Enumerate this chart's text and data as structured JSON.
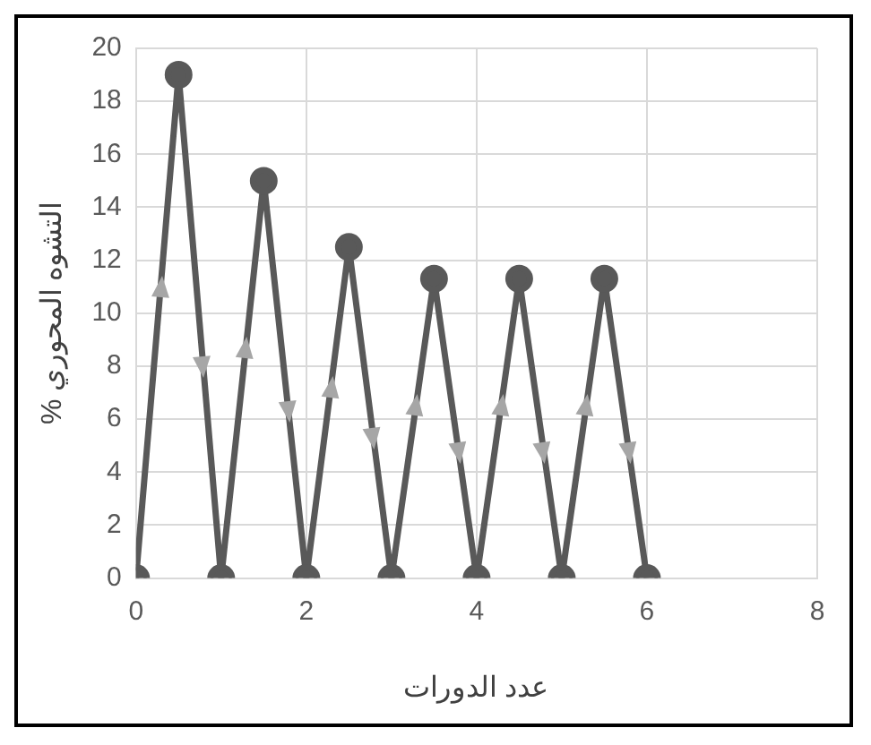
{
  "chart_data": {
    "type": "line",
    "xlabel": "عدد الدورات",
    "ylabel": "% التشوه المحوري",
    "x": [
      0,
      0.5,
      1,
      1.5,
      2,
      2.5,
      3,
      3.5,
      4,
      4.5,
      5,
      5.5,
      6
    ],
    "series": [
      {
        "color": "#595959",
        "values": [
          0,
          19,
          0,
          15,
          0,
          12.5,
          0,
          11.3,
          0,
          11.3,
          0,
          11.3,
          0
        ]
      }
    ],
    "xlim": [
      0,
      8
    ],
    "xticks": [
      0,
      2,
      4,
      6,
      8
    ],
    "ylim": [
      0,
      20
    ],
    "yticks": [
      0,
      2,
      4,
      6,
      8,
      10,
      12,
      14,
      16,
      18,
      20
    ],
    "grid": true,
    "legend": false,
    "marker": "circle",
    "line_style": "solid"
  }
}
